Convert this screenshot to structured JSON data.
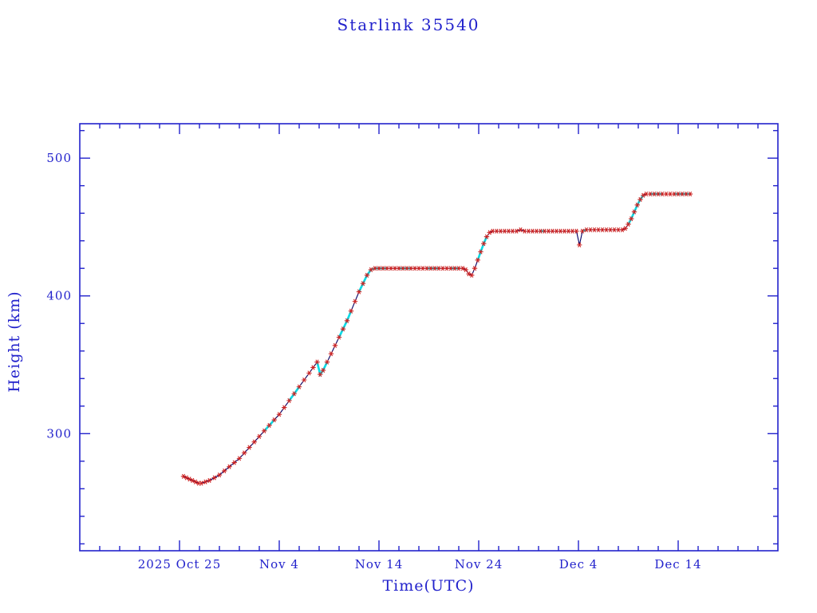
{
  "chart_data": {
    "type": "line",
    "title": "Starlink 35540",
    "xlabel": "Time(UTC)",
    "ylabel": "Height (km)",
    "x_unit": "days since 2025 Oct 15 (UTC)",
    "xlim": [
      0,
      70
    ],
    "ylim": [
      215,
      525
    ],
    "grid": false,
    "legend": "none",
    "x_ticks": [
      {
        "t": 10,
        "label": "2025 Oct 25"
      },
      {
        "t": 20,
        "label": "Nov 4"
      },
      {
        "t": 30,
        "label": "Nov 14"
      },
      {
        "t": 40,
        "label": "Nov 24"
      },
      {
        "t": 50,
        "label": "Dec 4"
      },
      {
        "t": 60,
        "label": "Dec 14"
      }
    ],
    "x_minor_step": 2,
    "y_ticks": [
      300,
      400,
      500
    ],
    "y_minor_step": 20,
    "colors": {
      "axis": "#2222cc",
      "line": "#000066",
      "marker": "#cc2222",
      "highlight": "#00dde8"
    },
    "points": [
      [
        10.4,
        269
      ],
      [
        10.7,
        268
      ],
      [
        11.0,
        267
      ],
      [
        11.3,
        266
      ],
      [
        11.6,
        265
      ],
      [
        11.9,
        264
      ],
      [
        12.2,
        264
      ],
      [
        12.6,
        265
      ],
      [
        13.0,
        266
      ],
      [
        13.5,
        268
      ],
      [
        14.0,
        270
      ],
      [
        14.5,
        273
      ],
      [
        15.0,
        276
      ],
      [
        15.5,
        279
      ],
      [
        16.0,
        282
      ],
      [
        16.5,
        286
      ],
      [
        17.0,
        290
      ],
      [
        17.5,
        294
      ],
      [
        18.0,
        298
      ],
      [
        18.5,
        302
      ],
      [
        19.0,
        306
      ],
      [
        19.5,
        310
      ],
      [
        20.0,
        314
      ],
      [
        20.5,
        319
      ],
      [
        21.0,
        324
      ],
      [
        21.5,
        329
      ],
      [
        22.0,
        334
      ],
      [
        22.5,
        339
      ],
      [
        23.0,
        344
      ],
      [
        23.4,
        348
      ],
      [
        23.8,
        352
      ],
      [
        24.1,
        343
      ],
      [
        24.4,
        346
      ],
      [
        24.8,
        352
      ],
      [
        25.2,
        358
      ],
      [
        25.6,
        364
      ],
      [
        26.0,
        370
      ],
      [
        26.4,
        376
      ],
      [
        26.8,
        382
      ],
      [
        27.2,
        389
      ],
      [
        27.6,
        396
      ],
      [
        28.0,
        403
      ],
      [
        28.4,
        409
      ],
      [
        28.8,
        415
      ],
      [
        29.2,
        419
      ],
      [
        29.6,
        420
      ],
      [
        30.0,
        420
      ],
      [
        30.4,
        420
      ],
      [
        30.8,
        420
      ],
      [
        31.2,
        420
      ],
      [
        31.6,
        420
      ],
      [
        32.0,
        420
      ],
      [
        32.4,
        420
      ],
      [
        32.8,
        420
      ],
      [
        33.2,
        420
      ],
      [
        33.6,
        420
      ],
      [
        34.0,
        420
      ],
      [
        34.4,
        420
      ],
      [
        34.8,
        420
      ],
      [
        35.2,
        420
      ],
      [
        35.6,
        420
      ],
      [
        36.0,
        420
      ],
      [
        36.4,
        420
      ],
      [
        36.8,
        420
      ],
      [
        37.2,
        420
      ],
      [
        37.6,
        420
      ],
      [
        38.0,
        420
      ],
      [
        38.4,
        420
      ],
      [
        38.7,
        419
      ],
      [
        39.0,
        416
      ],
      [
        39.3,
        415
      ],
      [
        39.6,
        420
      ],
      [
        39.9,
        426
      ],
      [
        40.2,
        432
      ],
      [
        40.5,
        438
      ],
      [
        40.8,
        443
      ],
      [
        41.1,
        446
      ],
      [
        41.4,
        447
      ],
      [
        41.8,
        447
      ],
      [
        42.2,
        447
      ],
      [
        42.6,
        447
      ],
      [
        43.0,
        447
      ],
      [
        43.4,
        447
      ],
      [
        43.8,
        447
      ],
      [
        44.2,
        448
      ],
      [
        44.6,
        447
      ],
      [
        45.0,
        447
      ],
      [
        45.4,
        447
      ],
      [
        45.8,
        447
      ],
      [
        46.2,
        447
      ],
      [
        46.6,
        447
      ],
      [
        47.0,
        447
      ],
      [
        47.4,
        447
      ],
      [
        47.8,
        447
      ],
      [
        48.2,
        447
      ],
      [
        48.6,
        447
      ],
      [
        49.0,
        447
      ],
      [
        49.4,
        447
      ],
      [
        49.8,
        447
      ],
      [
        50.1,
        437
      ],
      [
        50.4,
        447
      ],
      [
        50.8,
        448
      ],
      [
        51.2,
        448
      ],
      [
        51.6,
        448
      ],
      [
        52.0,
        448
      ],
      [
        52.4,
        448
      ],
      [
        52.8,
        448
      ],
      [
        53.2,
        448
      ],
      [
        53.6,
        448
      ],
      [
        54.0,
        448
      ],
      [
        54.4,
        448
      ],
      [
        54.7,
        449
      ],
      [
        55.0,
        452
      ],
      [
        55.3,
        456
      ],
      [
        55.6,
        461
      ],
      [
        55.9,
        466
      ],
      [
        56.2,
        470
      ],
      [
        56.5,
        473
      ],
      [
        56.8,
        474
      ],
      [
        57.2,
        474
      ],
      [
        57.6,
        474
      ],
      [
        58.0,
        474
      ],
      [
        58.4,
        474
      ],
      [
        58.8,
        474
      ],
      [
        59.2,
        474
      ],
      [
        59.6,
        474
      ],
      [
        60.0,
        474
      ],
      [
        60.4,
        474
      ],
      [
        60.8,
        474
      ],
      [
        61.2,
        474
      ]
    ],
    "cyan_segments": [
      [
        18.3,
        19.6
      ],
      [
        20.8,
        22.0
      ],
      [
        23.8,
        24.9
      ],
      [
        26.0,
        27.2
      ],
      [
        28.0,
        31.0
      ],
      [
        32.0,
        33.5
      ],
      [
        34.5,
        36.0
      ],
      [
        37.0,
        38.0
      ],
      [
        39.9,
        40.8
      ],
      [
        46.0,
        46.8
      ],
      [
        50.4,
        51.0
      ],
      [
        55.0,
        56.5
      ],
      [
        57.0,
        58.5
      ],
      [
        59.5,
        61.2
      ]
    ]
  }
}
